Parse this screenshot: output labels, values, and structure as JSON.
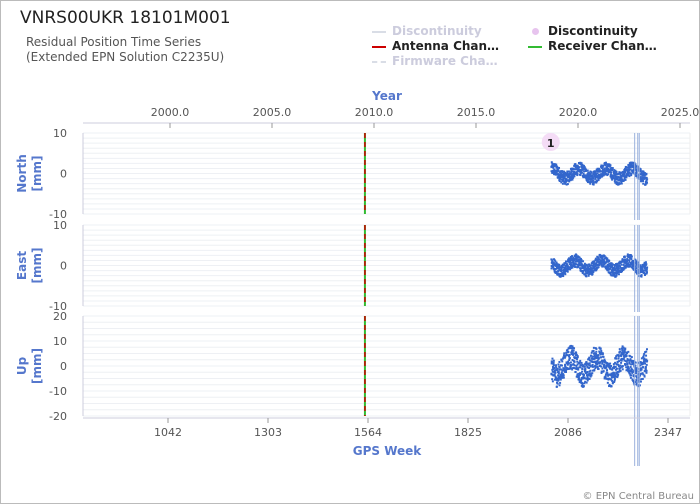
{
  "title": "VNRS00UKR 18101M001",
  "subtitle_line1": "Residual Position Time Series",
  "subtitle_line2": "(Extended EPN Solution C2235U)",
  "legend": [
    {
      "label": "Discontinuity",
      "style": "line",
      "color": "#d9dde6",
      "muted": true
    },
    {
      "label": "Discontinuity",
      "style": "dot",
      "color": "#e7c4ee",
      "muted": false
    },
    {
      "label": "Antenna Chan…",
      "style": "line",
      "color": "#cc0000",
      "muted": false
    },
    {
      "label": "Receiver Chan…",
      "style": "line",
      "color": "#33bb33",
      "muted": false
    },
    {
      "label": "Firmware Cha…",
      "style": "dash",
      "color": "#d9dde6",
      "muted": true
    }
  ],
  "copyright": "© EPN Central Bureau",
  "chart_data": {
    "type": "scatter",
    "top_axis": {
      "label": "Year",
      "ticks": [
        "2000.0",
        "2005.0",
        "2010.0",
        "2015.0",
        "2020.0",
        "2025.0"
      ]
    },
    "bottom_axis": {
      "label": "GPS Week",
      "ticks": [
        "1042",
        "1303",
        "1564",
        "1825",
        "2086",
        "2347"
      ]
    },
    "panels": [
      {
        "name": "North",
        "unit": "[mm]",
        "ylim": [
          -10,
          10
        ],
        "yticks": [
          "10",
          "0",
          "-10"
        ]
      },
      {
        "name": "East",
        "unit": "[mm]",
        "ylim": [
          -10,
          10
        ],
        "yticks": [
          "10",
          "0",
          "-10"
        ]
      },
      {
        "name": "Up",
        "unit": "[mm]",
        "ylim": [
          -20,
          20
        ],
        "yticks": [
          "20",
          "10",
          "0",
          "-10",
          "-20"
        ]
      }
    ],
    "events": [
      {
        "type": "antenna_receiver_change",
        "gps_week": 1556
      },
      {
        "type": "discontinuity",
        "gps_week": 2041,
        "label": "1"
      }
    ],
    "series_range_gps_week": [
      2040,
      2290
    ],
    "series_color": "#3366cc"
  }
}
